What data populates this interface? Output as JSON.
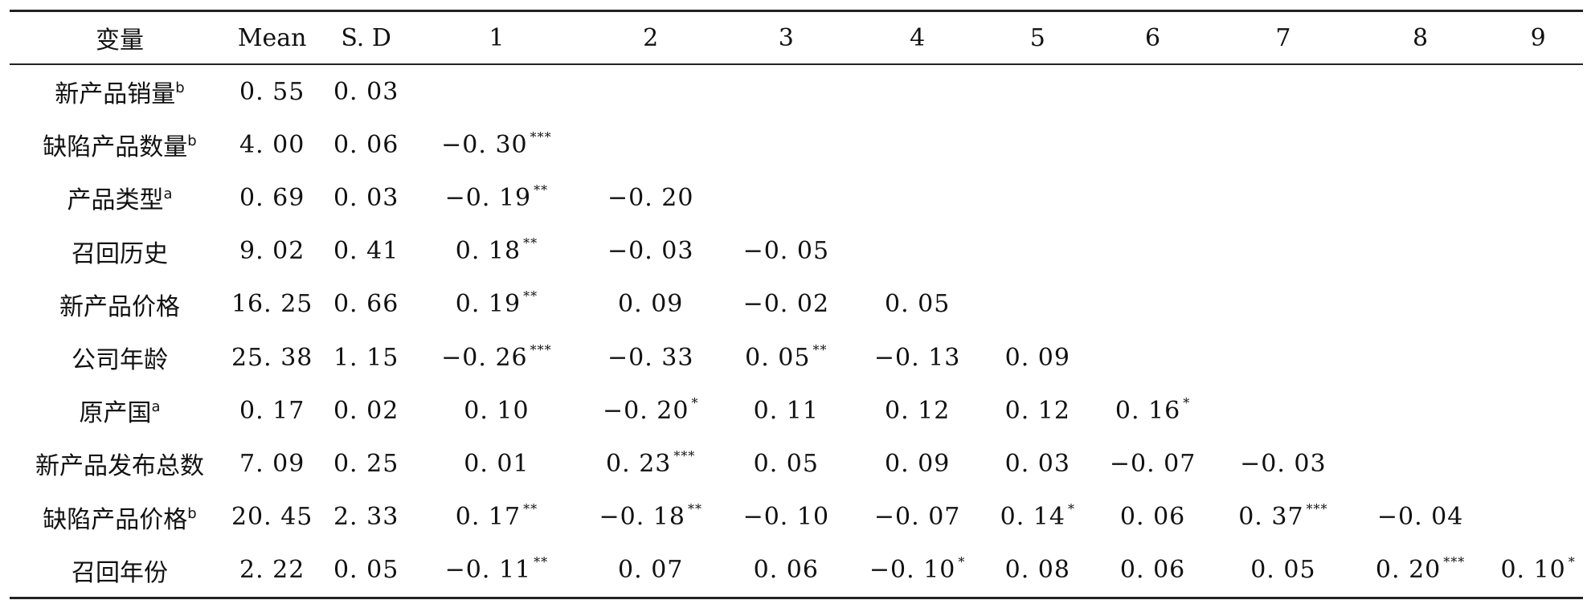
{
  "header": [
    "变量",
    "Mean",
    "S. D",
    "1",
    "2",
    "3",
    "4",
    "5",
    "6",
    "7",
    "8",
    "9"
  ],
  "rows": [
    {
      "label": "新产品销量",
      "sup": "b",
      "mean": "0. 55",
      "sd": "0. 03",
      "cells": []
    },
    {
      "label": "缺陷产品数量",
      "sup": "b",
      "mean": "4. 00",
      "sd": "0. 06",
      "cells": [
        {
          "v": "−0. 30",
          "s": "***"
        }
      ]
    },
    {
      "label": "产品类型",
      "sup": "a",
      "mean": "0. 69",
      "sd": "0. 03",
      "cells": [
        {
          "v": "−0. 19",
          "s": "**"
        },
        {
          "v": "−0. 20",
          "s": ""
        }
      ]
    },
    {
      "label": "召回历史",
      "sup": "",
      "mean": "9. 02",
      "sd": "0. 41",
      "cells": [
        {
          "v": "0. 18",
          "s": "**"
        },
        {
          "v": "−0. 03",
          "s": ""
        },
        {
          "v": "−0. 05",
          "s": ""
        }
      ]
    },
    {
      "label": "新产品价格",
      "sup": "",
      "mean": "16. 25",
      "sd": "0. 66",
      "cells": [
        {
          "v": "0. 19",
          "s": "**"
        },
        {
          "v": "0. 09",
          "s": ""
        },
        {
          "v": "−0. 02",
          "s": ""
        },
        {
          "v": "0. 05",
          "s": ""
        }
      ]
    },
    {
      "label": "公司年龄",
      "sup": "",
      "mean": "25. 38",
      "sd": "1. 15",
      "cells": [
        {
          "v": "−0. 26",
          "s": "***"
        },
        {
          "v": "−0. 33",
          "s": ""
        },
        {
          "v": "0. 05",
          "s": "**"
        },
        {
          "v": "−0. 13",
          "s": ""
        },
        {
          "v": "0. 09",
          "s": ""
        }
      ]
    },
    {
      "label": "原产国",
      "sup": "a",
      "mean": "0. 17",
      "sd": "0. 02",
      "cells": [
        {
          "v": "0. 10",
          "s": ""
        },
        {
          "v": "−0. 20",
          "s": "*"
        },
        {
          "v": "0. 11",
          "s": ""
        },
        {
          "v": "0. 12",
          "s": ""
        },
        {
          "v": "0. 12",
          "s": ""
        },
        {
          "v": "0. 16",
          "s": "*"
        }
      ]
    },
    {
      "label": "新产品发布总数",
      "sup": "",
      "mean": "7. 09",
      "sd": "0. 25",
      "cells": [
        {
          "v": "0. 01",
          "s": ""
        },
        {
          "v": "0. 23",
          "s": "***"
        },
        {
          "v": "0. 05",
          "s": ""
        },
        {
          "v": "0. 09",
          "s": ""
        },
        {
          "v": "0. 03",
          "s": ""
        },
        {
          "v": "−0. 07",
          "s": ""
        },
        {
          "v": "−0. 03",
          "s": ""
        }
      ]
    },
    {
      "label": "缺陷产品价格",
      "sup": "b",
      "mean": "20. 45",
      "sd": "2. 33",
      "cells": [
        {
          "v": "0. 17",
          "s": "**"
        },
        {
          "v": "−0. 18",
          "s": "**"
        },
        {
          "v": "−0. 10",
          "s": ""
        },
        {
          "v": "−0. 07",
          "s": ""
        },
        {
          "v": "0. 14",
          "s": "*"
        },
        {
          "v": "0. 06",
          "s": ""
        },
        {
          "v": "0. 37",
          "s": "***"
        },
        {
          "v": "−0. 04",
          "s": ""
        }
      ]
    },
    {
      "label": "召回年份",
      "sup": "",
      "mean": "2. 22",
      "sd": "0. 05",
      "cells": [
        {
          "v": "−0. 11",
          "s": "**"
        },
        {
          "v": "0. 07",
          "s": ""
        },
        {
          "v": "0. 06",
          "s": ""
        },
        {
          "v": "−0. 10",
          "s": "*"
        },
        {
          "v": "0. 08",
          "s": ""
        },
        {
          "v": "0. 06",
          "s": ""
        },
        {
          "v": "0. 05",
          "s": ""
        },
        {
          "v": "0. 20",
          "s": "***"
        },
        {
          "v": "0. 10",
          "s": "*"
        }
      ]
    }
  ]
}
